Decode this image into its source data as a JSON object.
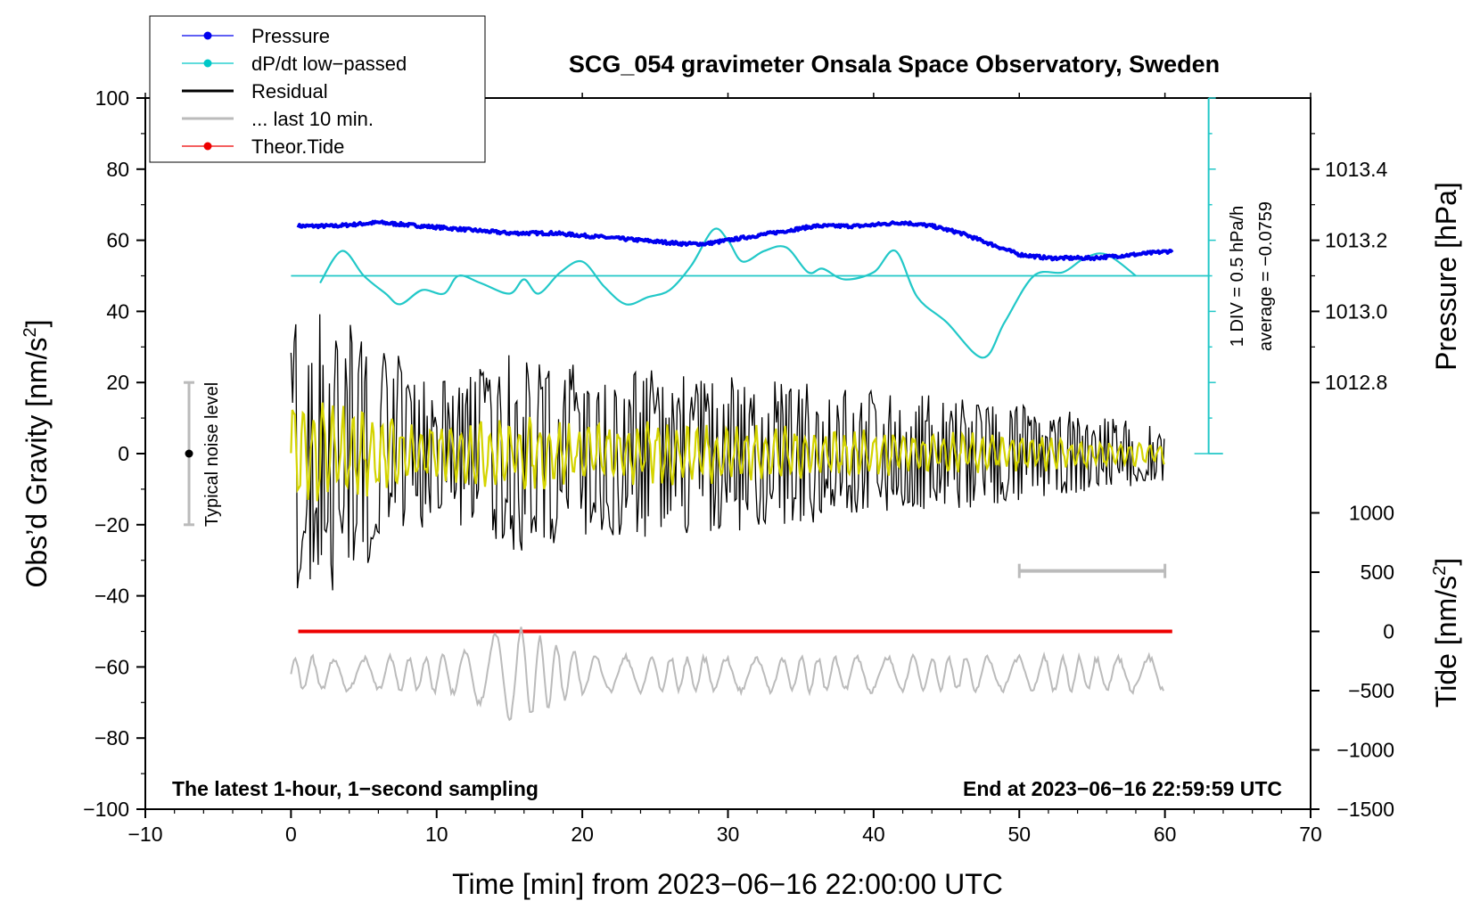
{
  "chart_data": {
    "type": "line",
    "title": "SCG_054 gravimeter Onsala Space Observatory, Sweden",
    "xlabel": "Time [min] from 2023−06−16 22:00:00 UTC",
    "ylabel_left": "Obs’d Gravity [nm/s",
    "ylabel_left_sup": "2",
    "ylabel_left_close": "]",
    "ylabel_right_pressure": "Pressure [hPa]",
    "ylabel_right_tide": "Tide [nm/s",
    "ylabel_right_tide_sup": "2",
    "ylabel_right_tide_close": "]",
    "xlim": [
      -10,
      70
    ],
    "ylim": [
      -100,
      100
    ],
    "x_ticks": [
      "−10",
      "0",
      "10",
      "20",
      "30",
      "40",
      "50",
      "60",
      "70"
    ],
    "y_ticks": [
      "−100",
      "−80",
      "−60",
      "−40",
      "−20",
      "0",
      "20",
      "40",
      "60",
      "80",
      "100"
    ],
    "pressure_ticks": [
      "1012.8",
      "1013.0",
      "1013.2",
      "1013.4"
    ],
    "tide_ticks": [
      "1000",
      "500",
      "0",
      "−500",
      "−1000",
      "−1500"
    ],
    "bottom_left_note": "The latest 1-hour, 1−second sampling",
    "bottom_right_note": "End at 2023−06−16 22:59:59 UTC",
    "noise_label": "Typical noise level",
    "dpdt_scale_label": "1 DIV = 0.5 hPa/h",
    "dpdt_average_label": "average = −0.0759",
    "legend": [
      {
        "label": "Pressure",
        "color": "#0000ee",
        "marker": true
      },
      {
        "label": "dP/dt low−passed",
        "color": "#00c8c8",
        "marker": true
      },
      {
        "label": "Residual",
        "color": "#000000",
        "marker": false
      },
      {
        "label": "... last 10 min.",
        "color": "#bbbbbb",
        "marker": false
      },
      {
        "label": "Theor.Tide",
        "color": "#ee0000",
        "marker": true
      }
    ],
    "colors": {
      "pressure": "#0000ee",
      "dpdt": "#22c8c8",
      "residual": "#000000",
      "residual_smooth": "#d4d400",
      "last10": "#bbbbbb",
      "tide": "#ee0000",
      "noise": "#bbbbbb"
    },
    "series": [
      {
        "name": "Pressure (left-axis units)",
        "x": [
          0.5,
          3,
          6,
          9,
          12,
          15,
          18,
          21,
          24,
          27,
          28.5,
          30,
          33,
          36,
          39,
          42,
          44,
          46,
          48,
          50,
          52,
          55,
          58,
          60.5
        ],
        "y": [
          64,
          64,
          65,
          64,
          63,
          62,
          62,
          61,
          60,
          59,
          59,
          60,
          62,
          64,
          64,
          65,
          64,
          62,
          59,
          56,
          55,
          55,
          56,
          57
        ]
      },
      {
        "name": "dP/dt low-passed (left-axis units)",
        "x": [
          2,
          3.5,
          5,
          6.5,
          7.5,
          9,
          10.5,
          11.5,
          13,
          15,
          16,
          17,
          18.5,
          20,
          21.5,
          23,
          24.5,
          26,
          27.5,
          29,
          30,
          31,
          32.5,
          34,
          35.5,
          36.5,
          38,
          40,
          41.5,
          43,
          45,
          47.5,
          49,
          51,
          53,
          54.5,
          56,
          58
        ],
        "y": [
          48,
          57,
          50,
          45,
          42,
          46,
          45,
          50,
          48,
          45,
          49,
          45,
          51,
          54,
          47,
          42,
          44,
          46,
          53,
          63,
          60,
          54,
          57,
          58,
          51,
          52,
          49,
          51,
          57,
          44,
          37,
          27,
          37,
          50,
          51,
          55,
          56,
          50
        ]
      },
      {
        "name": "dP/dt zero line (left-axis units)",
        "x": [
          0,
          63
        ],
        "y": [
          50,
          50
        ]
      },
      {
        "name": "Theor.Tide (left-axis units)",
        "x": [
          0.5,
          60.5
        ],
        "y": [
          -50,
          -50
        ]
      },
      {
        "name": "Residual amplitude envelope (left-axis units)",
        "x": [
          0,
          3.5,
          10,
          15,
          20,
          30,
          40,
          50,
          60
        ],
        "y": [
          40,
          40,
          20,
          28,
          25,
          22,
          18,
          14,
          8
        ]
      },
      {
        "name": "... last 10 min. (left-axis units, centred)",
        "x": [
          0,
          15,
          60
        ],
        "y": [
          -62,
          -62,
          -62
        ]
      }
    ],
    "noise_bar": {
      "x": -7,
      "center": 0,
      "low": -20,
      "high": 20
    },
    "scale_bar": {
      "x_start": 50,
      "x_end": 60,
      "y": -33
    }
  }
}
